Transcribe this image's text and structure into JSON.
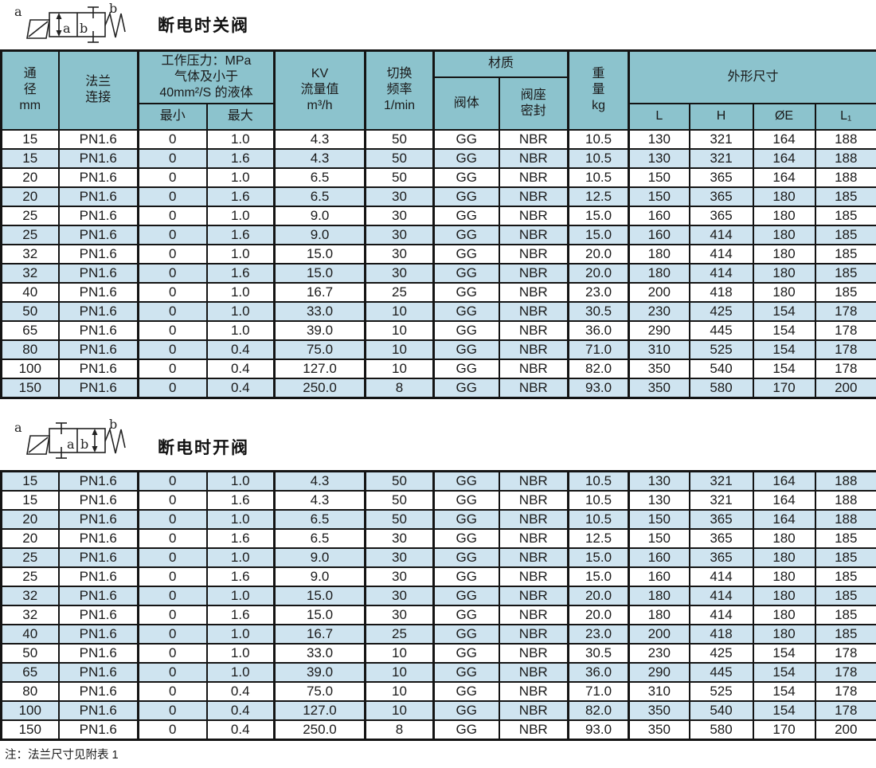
{
  "page": {
    "note": "注：法兰尺寸见附表 1"
  },
  "colors": {
    "header-bg": "#8cc3cd",
    "row-blue": "#cfe4f0",
    "row-white": "#ffffff",
    "border": "#141414",
    "text": "#1a1a1a"
  },
  "table": {
    "headers": {
      "dn": "通\n径\nmm",
      "flange": "法兰\n连接",
      "pressure_group": "工作压力：MPa\n气体及小于\n40mm²/S 的液体",
      "pressure_min": "最小",
      "pressure_max": "最大",
      "kv": "KV\n流量值\nm³/h",
      "freq": "切换\n频率\n1/min",
      "material_group": "材质",
      "material_body": "阀体",
      "material_seat": "阀座\n密封",
      "weight": "重\n量\nkg",
      "dims_group": "外形尺寸",
      "dim_l": "L",
      "dim_h": "H",
      "dim_e": "ØE",
      "dim_l1": "L₁"
    }
  },
  "sections": [
    {
      "title": "断电时关阀",
      "band_start": "white",
      "symbol": {
        "coil_label": "a",
        "spring_label": "b",
        "cell_a": "a",
        "cell_b": "b"
      },
      "rows": [
        [
          "15",
          "PN1.6",
          "0",
          "1.0",
          "4.3",
          "50",
          "GG",
          "NBR",
          "10.5",
          "130",
          "321",
          "164",
          "188"
        ],
        [
          "15",
          "PN1.6",
          "0",
          "1.6",
          "4.3",
          "50",
          "GG",
          "NBR",
          "10.5",
          "130",
          "321",
          "164",
          "188"
        ],
        [
          "20",
          "PN1.6",
          "0",
          "1.0",
          "6.5",
          "50",
          "GG",
          "NBR",
          "10.5",
          "150",
          "365",
          "164",
          "188"
        ],
        [
          "20",
          "PN1.6",
          "0",
          "1.6",
          "6.5",
          "30",
          "GG",
          "NBR",
          "12.5",
          "150",
          "365",
          "180",
          "185"
        ],
        [
          "25",
          "PN1.6",
          "0",
          "1.0",
          "9.0",
          "30",
          "GG",
          "NBR",
          "15.0",
          "160",
          "365",
          "180",
          "185"
        ],
        [
          "25",
          "PN1.6",
          "0",
          "1.6",
          "9.0",
          "30",
          "GG",
          "NBR",
          "15.0",
          "160",
          "414",
          "180",
          "185"
        ],
        [
          "32",
          "PN1.6",
          "0",
          "1.0",
          "15.0",
          "30",
          "GG",
          "NBR",
          "20.0",
          "180",
          "414",
          "180",
          "185"
        ],
        [
          "32",
          "PN1.6",
          "0",
          "1.6",
          "15.0",
          "30",
          "GG",
          "NBR",
          "20.0",
          "180",
          "414",
          "180",
          "185"
        ],
        [
          "40",
          "PN1.6",
          "0",
          "1.0",
          "16.7",
          "25",
          "GG",
          "NBR",
          "23.0",
          "200",
          "418",
          "180",
          "185"
        ],
        [
          "50",
          "PN1.6",
          "0",
          "1.0",
          "33.0",
          "10",
          "GG",
          "NBR",
          "30.5",
          "230",
          "425",
          "154",
          "178"
        ],
        [
          "65",
          "PN1.6",
          "0",
          "1.0",
          "39.0",
          "10",
          "GG",
          "NBR",
          "36.0",
          "290",
          "445",
          "154",
          "178"
        ],
        [
          "80",
          "PN1.6",
          "0",
          "0.4",
          "75.0",
          "10",
          "GG",
          "NBR",
          "71.0",
          "310",
          "525",
          "154",
          "178"
        ],
        [
          "100",
          "PN1.6",
          "0",
          "0.4",
          "127.0",
          "10",
          "GG",
          "NBR",
          "82.0",
          "350",
          "540",
          "154",
          "178"
        ],
        [
          "150",
          "PN1.6",
          "0",
          "0.4",
          "250.0",
          "8",
          "GG",
          "NBR",
          "93.0",
          "350",
          "580",
          "170",
          "200"
        ]
      ]
    },
    {
      "title": "断电时开阀",
      "band_start": "blue",
      "symbol": {
        "coil_label": "a",
        "spring_label": "b",
        "cell_a": "a",
        "cell_b": "b"
      },
      "rows": [
        [
          "15",
          "PN1.6",
          "0",
          "1.0",
          "4.3",
          "50",
          "GG",
          "NBR",
          "10.5",
          "130",
          "321",
          "164",
          "188"
        ],
        [
          "15",
          "PN1.6",
          "0",
          "1.6",
          "4.3",
          "50",
          "GG",
          "NBR",
          "10.5",
          "130",
          "321",
          "164",
          "188"
        ],
        [
          "20",
          "PN1.6",
          "0",
          "1.0",
          "6.5",
          "50",
          "GG",
          "NBR",
          "10.5",
          "150",
          "365",
          "164",
          "188"
        ],
        [
          "20",
          "PN1.6",
          "0",
          "1.6",
          "6.5",
          "30",
          "GG",
          "NBR",
          "12.5",
          "150",
          "365",
          "180",
          "185"
        ],
        [
          "25",
          "PN1.6",
          "0",
          "1.0",
          "9.0",
          "30",
          "GG",
          "NBR",
          "15.0",
          "160",
          "365",
          "180",
          "185"
        ],
        [
          "25",
          "PN1.6",
          "0",
          "1.6",
          "9.0",
          "30",
          "GG",
          "NBR",
          "15.0",
          "160",
          "414",
          "180",
          "185"
        ],
        [
          "32",
          "PN1.6",
          "0",
          "1.0",
          "15.0",
          "30",
          "GG",
          "NBR",
          "20.0",
          "180",
          "414",
          "180",
          "185"
        ],
        [
          "32",
          "PN1.6",
          "0",
          "1.6",
          "15.0",
          "30",
          "GG",
          "NBR",
          "20.0",
          "180",
          "414",
          "180",
          "185"
        ],
        [
          "40",
          "PN1.6",
          "0",
          "1.0",
          "16.7",
          "25",
          "GG",
          "NBR",
          "23.0",
          "200",
          "418",
          "180",
          "185"
        ],
        [
          "50",
          "PN1.6",
          "0",
          "1.0",
          "33.0",
          "10",
          "GG",
          "NBR",
          "30.5",
          "230",
          "425",
          "154",
          "178"
        ],
        [
          "65",
          "PN1.6",
          "0",
          "1.0",
          "39.0",
          "10",
          "GG",
          "NBR",
          "36.0",
          "290",
          "445",
          "154",
          "178"
        ],
        [
          "80",
          "PN1.6",
          "0",
          "0.4",
          "75.0",
          "10",
          "GG",
          "NBR",
          "71.0",
          "310",
          "525",
          "154",
          "178"
        ],
        [
          "100",
          "PN1.6",
          "0",
          "0.4",
          "127.0",
          "10",
          "GG",
          "NBR",
          "82.0",
          "350",
          "540",
          "154",
          "178"
        ],
        [
          "150",
          "PN1.6",
          "0",
          "0.4",
          "250.0",
          "8",
          "GG",
          "NBR",
          "93.0",
          "350",
          "580",
          "170",
          "200"
        ]
      ]
    }
  ]
}
